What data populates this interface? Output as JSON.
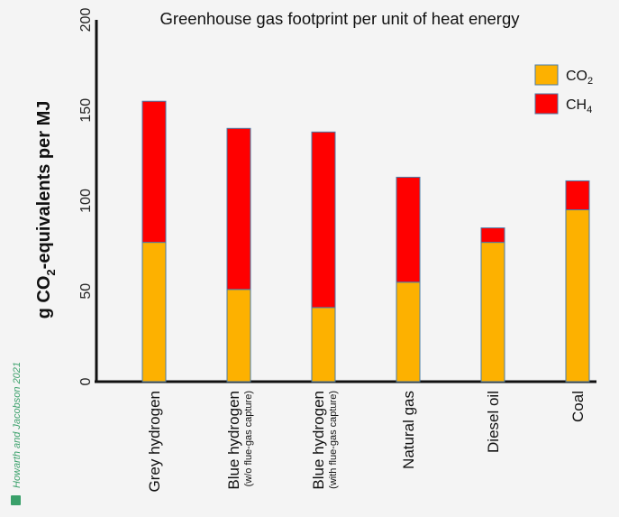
{
  "chart_data": {
    "type": "bar",
    "stacked": true,
    "title": "Greenhouse gas footprint per unit of heat energy",
    "ylabel_parts": [
      "g CO",
      "2",
      "-equivalents per MJ"
    ],
    "ylim": [
      0,
      200
    ],
    "yticks": [
      "0",
      "50",
      "100",
      "150",
      "200"
    ],
    "categories": [
      {
        "label": "Grey hydrogen",
        "sub": ""
      },
      {
        "label": "Blue hydrogen",
        "sub": "(w/o flue-gas capture)"
      },
      {
        "label": "Blue hydrogen",
        "sub": "(with flue-gas capture)"
      },
      {
        "label": "Natural gas",
        "sub": ""
      },
      {
        "label": "Diesel oil",
        "sub": ""
      },
      {
        "label": "Coal",
        "sub": ""
      }
    ],
    "series": [
      {
        "name": "CO2",
        "label_base": "CO",
        "label_sub": "2",
        "color": "#FDB100",
        "values": [
          77,
          51,
          41,
          55,
          77,
          95
        ]
      },
      {
        "name": "CH4",
        "label_base": "CH",
        "label_sub": "4",
        "color": "#FF0000",
        "values": [
          78,
          89,
          97,
          58,
          8,
          16
        ]
      }
    ],
    "legend_position": "top-right"
  },
  "credit": "Howarth and Jacobson 2021"
}
